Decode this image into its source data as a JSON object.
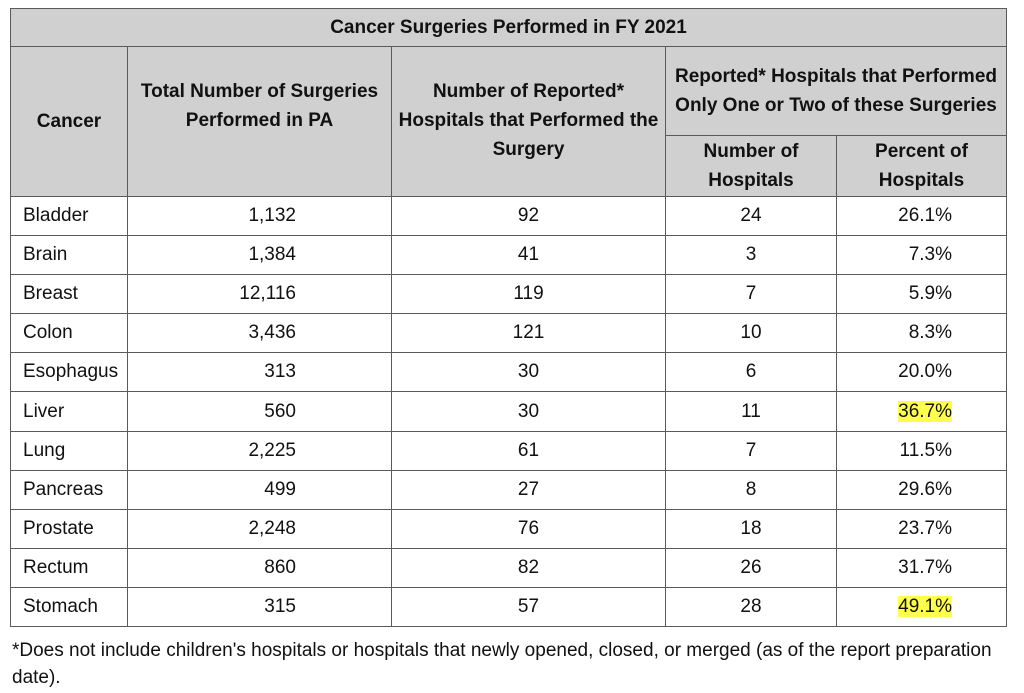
{
  "table": {
    "title": "Cancer Surgeries Performed in FY 2021",
    "headers": {
      "cancer": "Cancer",
      "total": "Total Number of Surgeries Performed in PA",
      "hospitals": "Number of Reported* Hospitals that Performed the Surgery",
      "group": "Reported* Hospitals that Performed Only One or Two of these Surgeries",
      "num_hospitals": "Number of Hospitals",
      "pct_hospitals": "Percent of Hospitals"
    },
    "highlight_color": "#ffff4d",
    "rows": [
      {
        "cancer": "Bladder",
        "total": "1,132",
        "hospitals": "92",
        "num": "24",
        "pct": "26.1%",
        "highlight": false
      },
      {
        "cancer": "Brain",
        "total": "1,384",
        "hospitals": "41",
        "num": "3",
        "pct": "7.3%",
        "highlight": false
      },
      {
        "cancer": "Breast",
        "total": "12,116",
        "hospitals": "119",
        "num": "7",
        "pct": "5.9%",
        "highlight": false
      },
      {
        "cancer": "Colon",
        "total": "3,436",
        "hospitals": "121",
        "num": "10",
        "pct": "8.3%",
        "highlight": false
      },
      {
        "cancer": "Esophagus",
        "total": "313",
        "hospitals": "30",
        "num": "6",
        "pct": "20.0%",
        "highlight": false
      },
      {
        "cancer": "Liver",
        "total": "560",
        "hospitals": "30",
        "num": "11",
        "pct": "36.7%",
        "highlight": true
      },
      {
        "cancer": "Lung",
        "total": "2,225",
        "hospitals": "61",
        "num": "7",
        "pct": "11.5%",
        "highlight": false
      },
      {
        "cancer": "Pancreas",
        "total": "499",
        "hospitals": "27",
        "num": "8",
        "pct": "29.6%",
        "highlight": false
      },
      {
        "cancer": "Prostate",
        "total": "2,248",
        "hospitals": "76",
        "num": "18",
        "pct": "23.7%",
        "highlight": false
      },
      {
        "cancer": "Rectum",
        "total": "860",
        "hospitals": "82",
        "num": "26",
        "pct": "31.7%",
        "highlight": false
      },
      {
        "cancer": "Stomach",
        "total": "315",
        "hospitals": "57",
        "num": "28",
        "pct": "49.1%",
        "highlight": true
      }
    ]
  },
  "footnote": "*Does not include children's hospitals or hospitals that newly opened, closed, or merged (as of the report preparation date)."
}
